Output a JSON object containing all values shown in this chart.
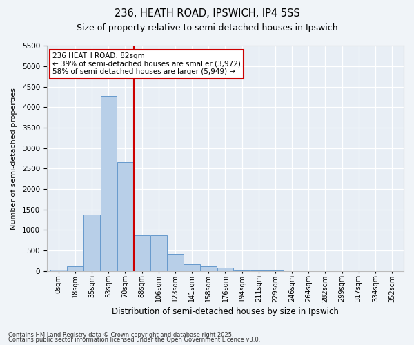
{
  "title1": "236, HEATH ROAD, IPSWICH, IP4 5SS",
  "title2": "Size of property relative to semi-detached houses in Ipswich",
  "xlabel": "Distribution of semi-detached houses by size in Ipswich",
  "ylabel": "Number of semi-detached properties",
  "annotation_title": "236 HEATH ROAD: 82sqm",
  "annotation_line1": "← 39% of semi-detached houses are smaller (3,972)",
  "annotation_line2": "58% of semi-detached houses are larger (5,949) →",
  "footer1": "Contains HM Land Registry data © Crown copyright and database right 2025.",
  "footer2": "Contains public sector information licensed under the Open Government Licence v3.0.",
  "bar_color": "#b8cfe8",
  "bar_edge_color": "#6699cc",
  "vline_color": "#cc0000",
  "categories": [
    "0sqm",
    "18sqm",
    "35sqm",
    "53sqm",
    "70sqm",
    "88sqm",
    "106sqm",
    "123sqm",
    "141sqm",
    "158sqm",
    "176sqm",
    "194sqm",
    "211sqm",
    "229sqm",
    "246sqm",
    "264sqm",
    "282sqm",
    "299sqm",
    "317sqm",
    "334sqm",
    "352sqm"
  ],
  "values": [
    25,
    120,
    1380,
    4280,
    2650,
    870,
    870,
    415,
    155,
    105,
    80,
    10,
    5,
    5,
    2,
    2,
    0,
    0,
    0,
    0,
    0
  ],
  "ylim_max": 5500,
  "yticks": [
    0,
    500,
    1000,
    1500,
    2000,
    2500,
    3000,
    3500,
    4000,
    4500,
    5000,
    5500
  ],
  "fig_bg": "#f0f4f8",
  "ax_bg": "#e8eef5",
  "grid_color": "#ffffff",
  "annotation_bg": "#ffffff",
  "annotation_edge": "#cc0000",
  "vline_bin_index": 4.5
}
